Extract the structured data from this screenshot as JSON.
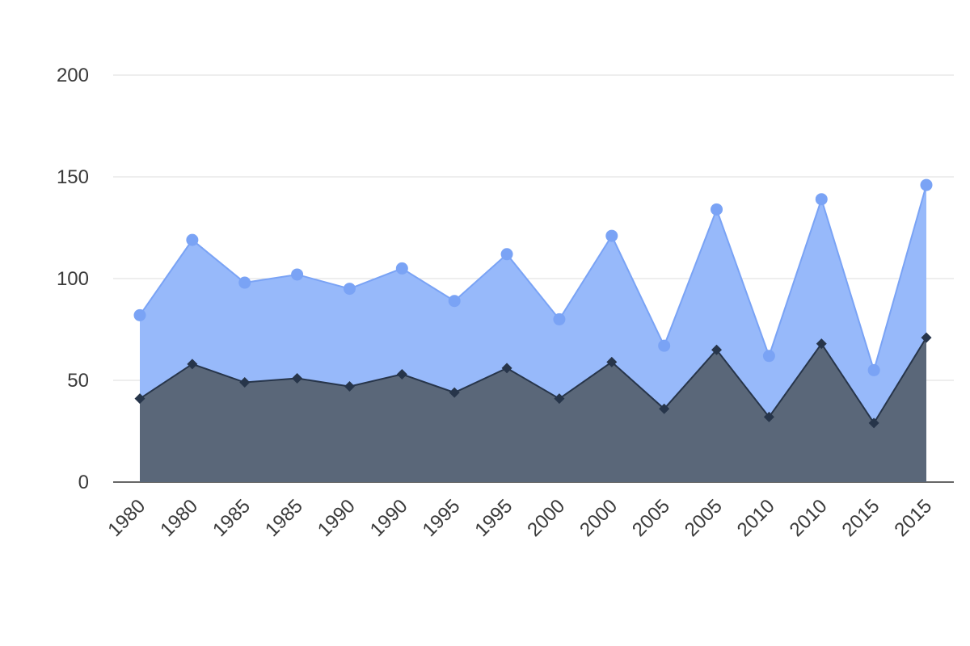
{
  "chart_data": {
    "type": "area",
    "categories": [
      "1980",
      "1980",
      "1985",
      "1985",
      "1990",
      "1990",
      "1995",
      "1995",
      "2000",
      "2000",
      "2005",
      "2005",
      "2010",
      "2010",
      "2015",
      "2015"
    ],
    "series": [
      {
        "values": [
          41,
          58,
          49,
          51,
          47,
          53,
          44,
          56,
          41,
          59,
          36,
          65,
          32,
          68,
          29,
          71
        ]
      },
      {
        "values": [
          82,
          119,
          98,
          102,
          95,
          105,
          89,
          112,
          80,
          121,
          67,
          134,
          62,
          139,
          55,
          146
        ]
      }
    ],
    "stacked_display": false,
    "ylim": [
      0,
      200
    ],
    "yticks": [
      "0",
      "50",
      "100",
      "150",
      "200"
    ],
    "grid": true,
    "colors": {
      "series0_fill": "#5a6779",
      "series0_line": "#27354a",
      "series1_fill": "#97b9fa",
      "series1_line": "#7aa3f5",
      "series1_marker": "#7aa3f5",
      "grid": "#dcdcdc",
      "axis": "#333333",
      "text": "#3a3a3a"
    },
    "markers": {
      "series0": "diamond",
      "series1": "circle"
    }
  }
}
